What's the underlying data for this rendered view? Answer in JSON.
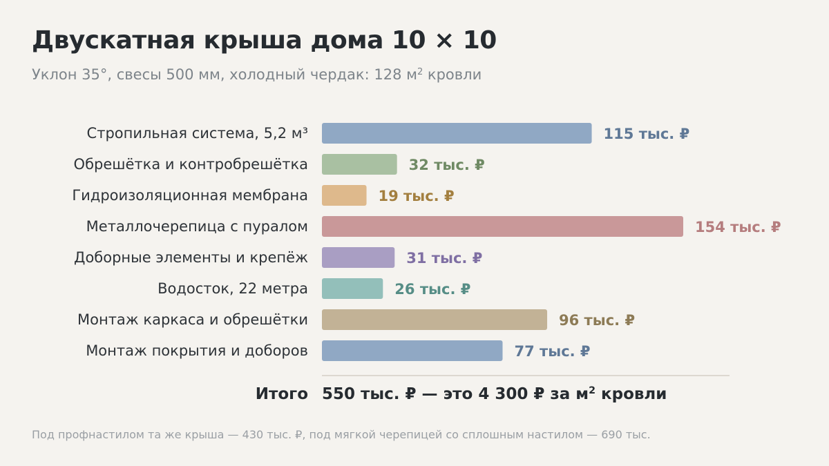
{
  "header": {
    "title": "Двускатная крыша дома 10 × 10",
    "subtitle_main": "Уклон 35°, свесы 500 мм, холодный чердак: 128 м",
    "subtitle_sup": "2",
    "subtitle_tail": " кровли"
  },
  "chart_data": {
    "type": "bar",
    "orientation": "horizontal",
    "unit": "тыс. ₽",
    "categories": [
      "Стропильная система, 5,2 м³",
      "Обрешётка и контробрешётка",
      "Гидроизоляционная мембрана",
      "Металлочерепица с пуралом",
      "Доборные элементы и крепёж",
      "Водосток, 22 метра",
      "Монтаж каркаса и обрешётки",
      "Монтаж покрытия и доборов"
    ],
    "values": [
      115,
      32,
      19,
      154,
      31,
      26,
      96,
      77
    ],
    "value_labels": [
      "115 тыс. ₽",
      "32 тыс. ₽",
      "19 тыс. ₽",
      "154 тыс. ₽",
      "31 тыс. ₽",
      "26 тыс. ₽",
      "96 тыс. ₽",
      "77 тыс. ₽"
    ],
    "bar_colors": [
      "#90a8c4",
      "#a9c0a2",
      "#deb98c",
      "#c99899",
      "#a99ec3",
      "#93bfba",
      "#c2b296",
      "#90a8c4"
    ],
    "label_colors": [
      "#5f7896",
      "#6f8a64",
      "#a37f3f",
      "#b57d7e",
      "#7f6fa3",
      "#568d86",
      "#8d7b56",
      "#5f7896"
    ],
    "xlim": [
      0,
      154
    ],
    "grid": false,
    "legend": "none"
  },
  "total": {
    "label": "Итого",
    "value_main": "550 тыс. ₽ — это 4 300 ₽ за м",
    "value_sup": "2",
    "value_tail": " кровли"
  },
  "footnote": "Под профнастилом та же крыша — 430 тыс. ₽, под мягкой черепицей со сплошным настилом — 690 тыс."
}
